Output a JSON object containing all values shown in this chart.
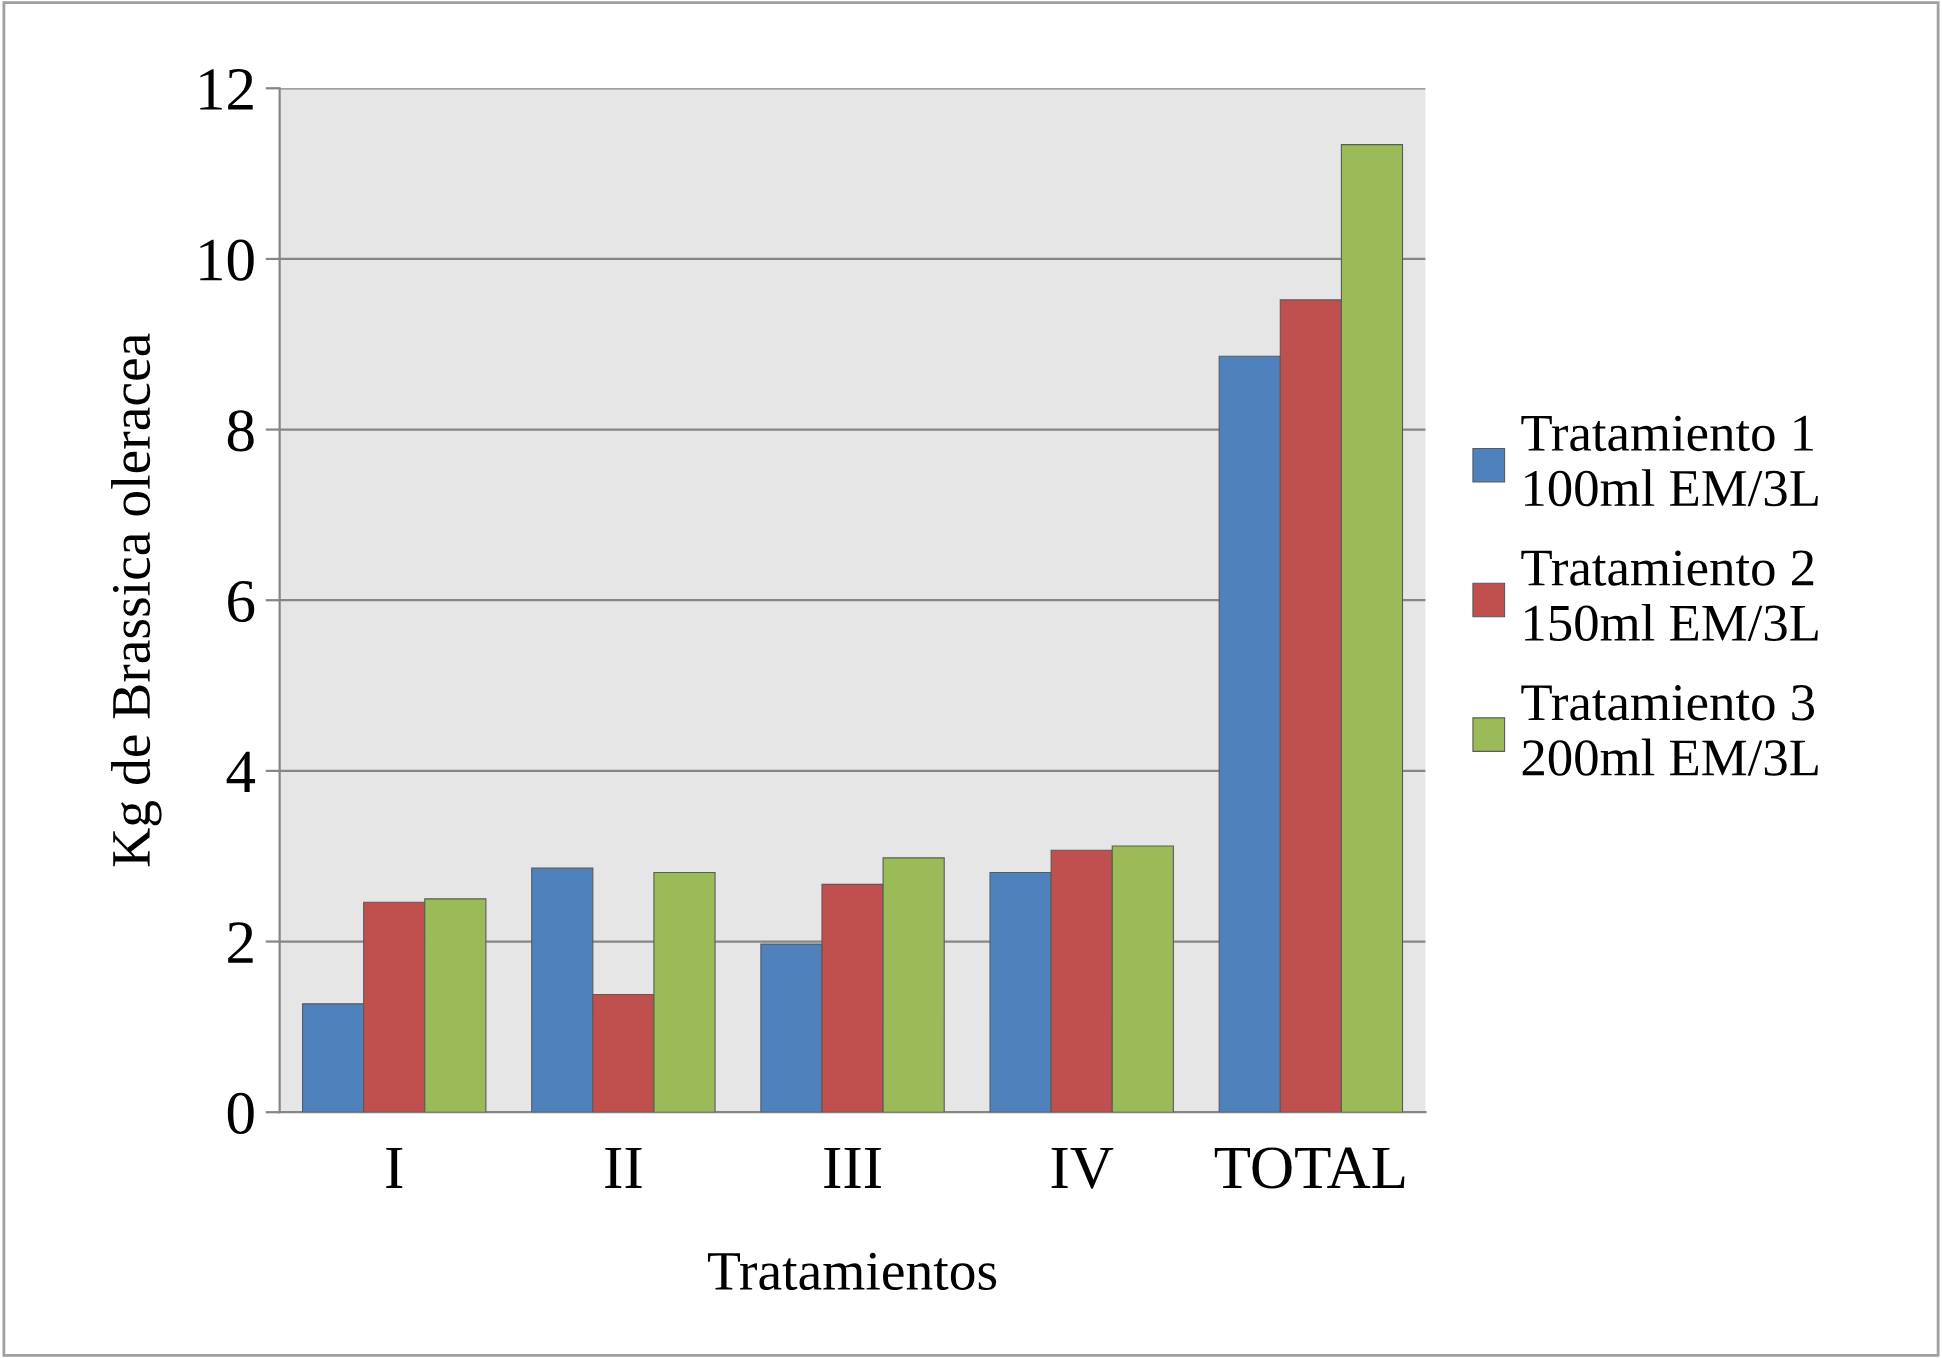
{
  "chart_data": {
    "type": "bar",
    "xlabel": "Tratamientos",
    "ylabel": "Kg de Brassica oleracea",
    "categories": [
      "I",
      "II",
      "III",
      "IV",
      "TOTAL"
    ],
    "series": [
      {
        "name": "Tratamiento 1\n100ml EM/3L",
        "color": "#4f81bd",
        "values": [
          1.27,
          2.86,
          1.97,
          2.81,
          8.86
        ]
      },
      {
        "name": "Tratamiento 2\n150ml EM/3L",
        "color": "#c0504d",
        "values": [
          2.46,
          1.38,
          2.67,
          3.07,
          9.52
        ]
      },
      {
        "name": "Tratamiento 3\n200ml EM/3L",
        "color": "#9bbb59",
        "values": [
          2.5,
          2.81,
          2.98,
          3.12,
          11.34
        ]
      }
    ],
    "ylim": [
      0,
      12
    ],
    "yticks": [
      0,
      2,
      4,
      6,
      8,
      10,
      12
    ],
    "grid": "y",
    "legend": "right"
  }
}
